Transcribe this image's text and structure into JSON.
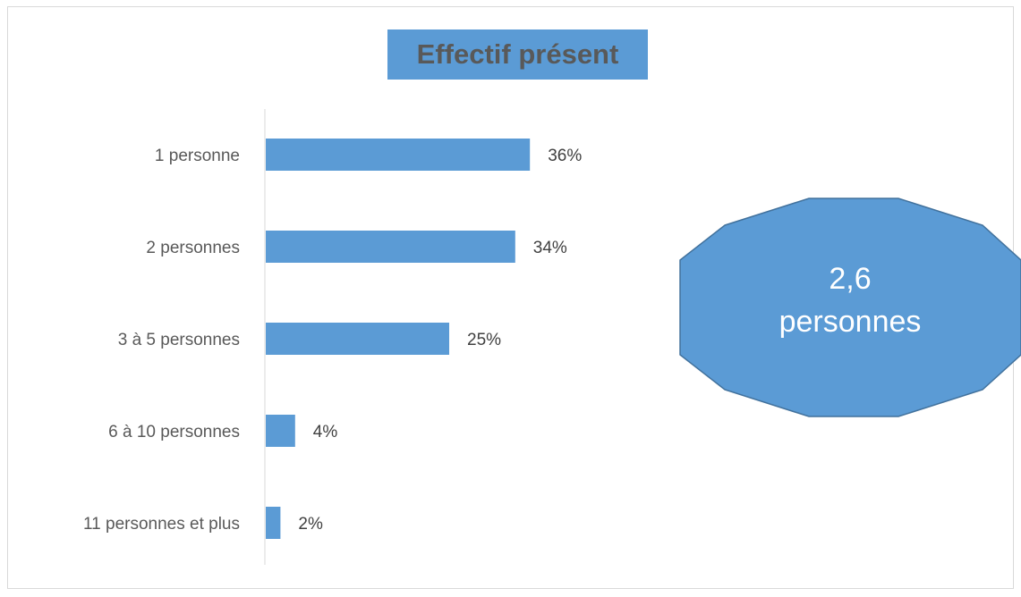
{
  "chart_data": {
    "type": "bar",
    "orientation": "horizontal",
    "title": "Effectif présent",
    "categories": [
      "1 personne",
      "2 personnes",
      "3 à 5 personnes",
      "6 à 10 personnes",
      "11 personnes et plus"
    ],
    "values": [
      36,
      34,
      25,
      4,
      2
    ],
    "value_labels": [
      "36%",
      "34%",
      "25%",
      "4%",
      "2%"
    ],
    "unit": "%",
    "xlim": [
      0,
      100
    ],
    "grid": false,
    "legend": "none",
    "bar_color": "#5b9bd5"
  },
  "callout": {
    "line1": "2,6",
    "line2": "personnes",
    "fill": "#5b9bd5",
    "stroke": "#41719c"
  }
}
